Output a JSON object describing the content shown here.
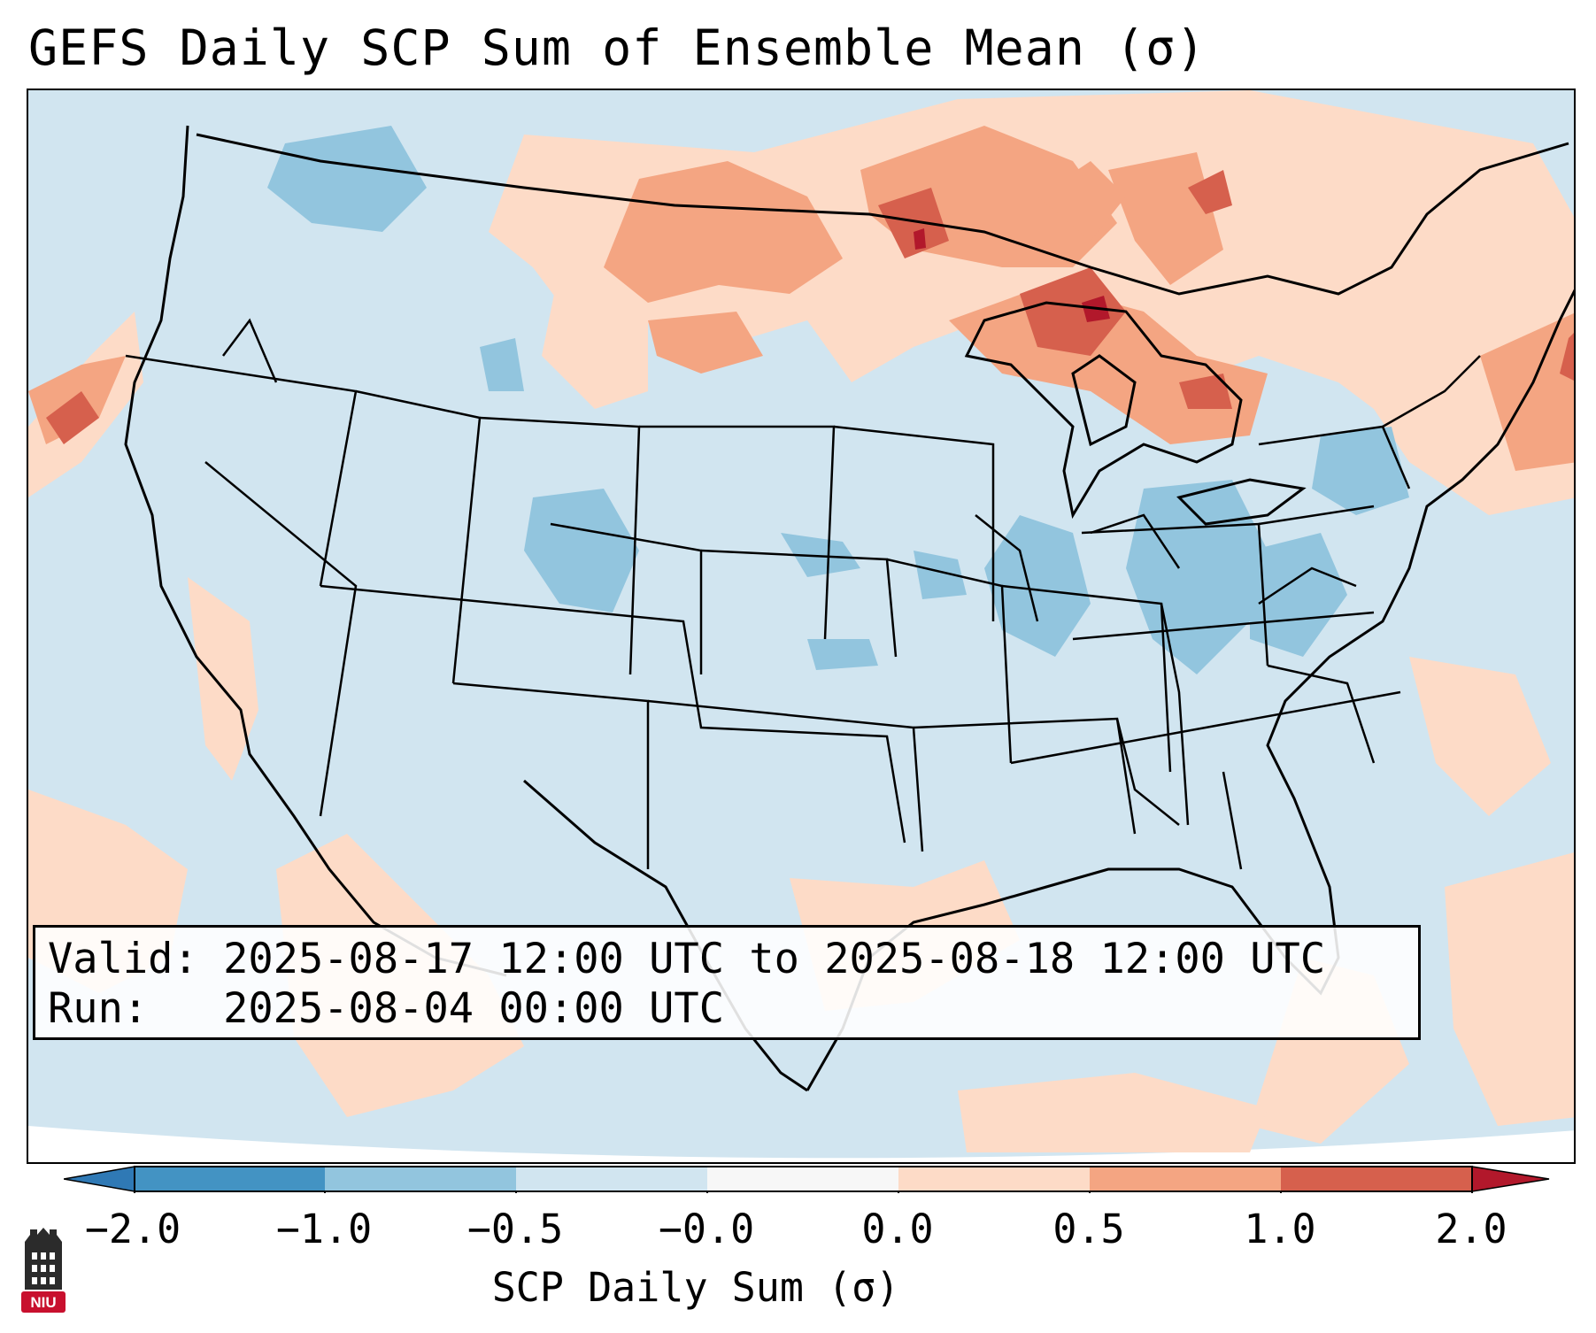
{
  "title": "GEFS Daily SCP Sum of Ensemble Mean (σ)",
  "info": {
    "valid_label": "Valid:",
    "valid_value": "2025-08-17 12:00 UTC to 2025-08-18 12:00 UTC",
    "run_label": "Run:",
    "run_value": "2025-08-04 00:00 UTC"
  },
  "colorbar": {
    "label": "SCP Daily Sum (σ)",
    "ticks": [
      "−2.0",
      "−1.0",
      "−0.5",
      "−0.0",
      "0.0",
      "0.5",
      "1.0",
      "2.0"
    ],
    "bins": [
      {
        "range": "< -2.0",
        "color": "#2f79b5"
      },
      {
        "range": "-2.0 to -1.0",
        "color": "#4393c3"
      },
      {
        "range": "-1.0 to -0.5",
        "color": "#92c5de"
      },
      {
        "range": "-0.5 to -0.0",
        "color": "#d1e5f0"
      },
      {
        "range": "-0.0 to 0.0",
        "color": "#f7f7f7"
      },
      {
        "range": "0.0 to 0.5",
        "color": "#fddbc7"
      },
      {
        "range": "0.5 to 1.0",
        "color": "#f4a582"
      },
      {
        "range": "1.0 to 2.0",
        "color": "#d6604d"
      },
      {
        "range": "> 2.0",
        "color": "#b2182b"
      }
    ]
  },
  "logo": {
    "text": "NIU",
    "color": "#c8102e"
  },
  "map": {
    "region": "Contiguous United States, southern Canada, northern Mexico",
    "dominant_value": "-0.5 to -0.0",
    "positive_anomaly_regions": [
      "Upper Great Lakes",
      "Northern Plains",
      "New England",
      "Pacific offshore",
      "Gulf of Mexico",
      "Northern Mexico"
    ],
    "max_anomaly_region": "Upper Michigan / Lake Superior",
    "negative_anomaly_regions": [
      "Ohio Valley",
      "Central Appalachians",
      "Colorado",
      "Pacific Northwest"
    ]
  }
}
